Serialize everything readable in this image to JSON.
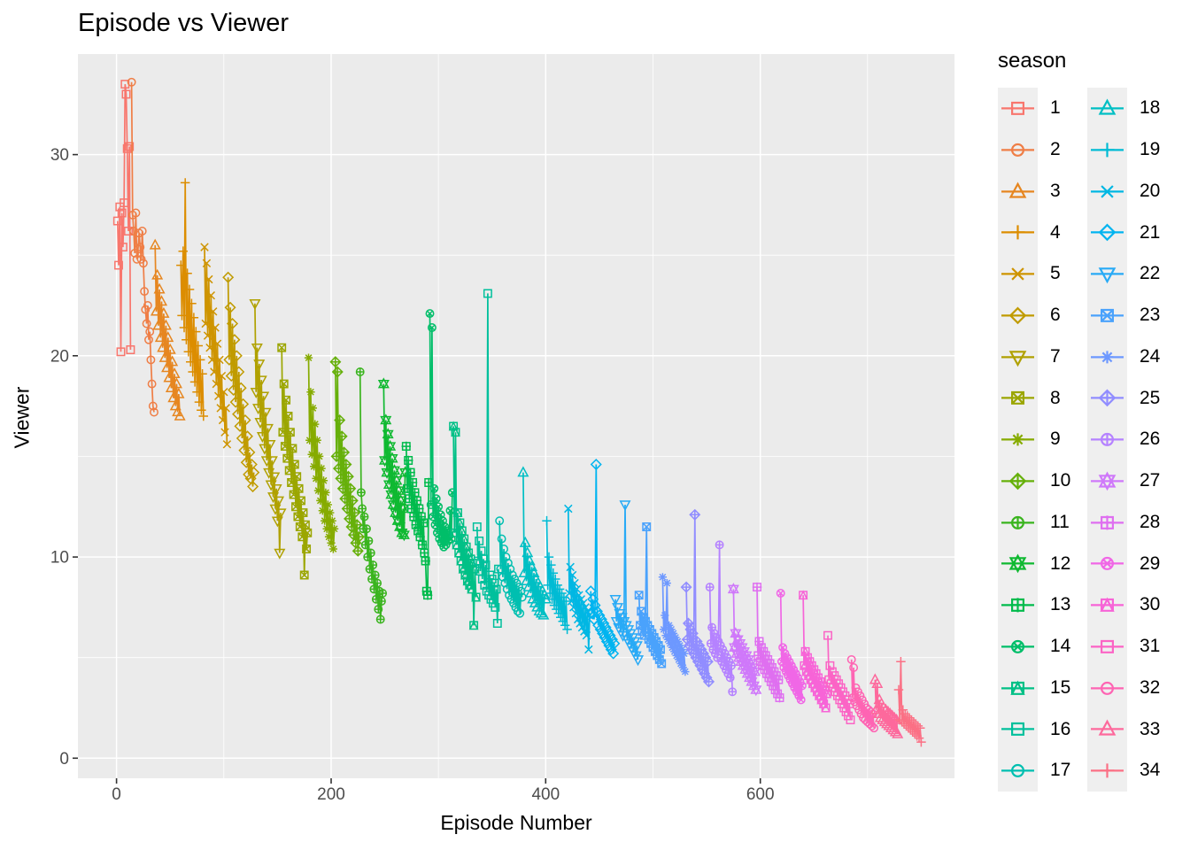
{
  "title": "Episode vs Viewer",
  "axes": {
    "x": {
      "label": "Episode Number",
      "tick_values": [
        0,
        200,
        400,
        600
      ],
      "tick_labels": [
        "0",
        "200",
        "400",
        "600"
      ],
      "minor_ticks": [
        100,
        300,
        500,
        700
      ]
    },
    "y": {
      "label": "Viewer",
      "tick_values": [
        0,
        10,
        20,
        30
      ],
      "tick_labels": [
        "0",
        "10",
        "20",
        "30"
      ],
      "minor_ticks": [
        5,
        15,
        25
      ]
    }
  },
  "legend": {
    "title": "season",
    "column_split": 17
  },
  "colors": {
    "background": "#FFFFFF",
    "panel": "#EBEBEB",
    "grid": "#FFFFFF",
    "tick_mark": "#333333",
    "tick_label": "#4D4D4D",
    "text": "#000000",
    "legend_key": "#EFEFEF"
  },
  "chart_data": {
    "type": "line",
    "title": "Episode vs Viewer",
    "xlabel": "Episode Number",
    "ylabel": "Viewer",
    "xlim": [
      -36,
      781
    ],
    "ylim": [
      -1,
      35
    ],
    "grid": true,
    "legend_position": "right",
    "marker_cycle": [
      "square",
      "circle",
      "triangle-up",
      "plus",
      "cross",
      "diamond",
      "triangle-down",
      "square-cross",
      "asterisk",
      "diamond-plus",
      "circle-plus",
      "star-six",
      "square-plus",
      "circle-cross",
      "square-triangle"
    ],
    "series": [
      {
        "name": "1",
        "season": 1,
        "shape": "square",
        "color": "#F8766D",
        "start_episode": 1,
        "viewers": [
          26.7,
          24.5,
          27.4,
          20.2,
          27.1,
          25.4,
          27.6,
          33.5,
          33.0,
          30.3,
          26.2,
          30.4,
          20.3
        ]
      },
      {
        "name": "2",
        "season": 2,
        "shape": "circle",
        "color": "#EF7E46",
        "start_episode": 14,
        "viewers": [
          33.6,
          27.0,
          26.2,
          25.1,
          27.1,
          24.8,
          25.3,
          26.1,
          25.4,
          24.8,
          26.2,
          24.6,
          23.2,
          22.3,
          21.6,
          22.5,
          20.8,
          21.2,
          19.8,
          18.6,
          17.5,
          17.2
        ]
      },
      {
        "name": "3",
        "season": 3,
        "shape": "triangle-up",
        "color": "#E68620",
        "start_episode": 36,
        "viewers": [
          25.5,
          22.2,
          24.0,
          21.5,
          23.3,
          20.9,
          22.7,
          20.4,
          22.1,
          19.9,
          21.5,
          19.4,
          20.9,
          18.9,
          20.3,
          18.4,
          19.7,
          17.9,
          19.1,
          17.5,
          18.6,
          17.2,
          18.1,
          17.0
        ]
      },
      {
        "name": "4",
        "season": 4,
        "shape": "plus",
        "color": "#DC8D00",
        "start_episode": 60,
        "viewers": [
          24.5,
          22.0,
          25.2,
          21.4,
          28.6,
          20.8,
          24.1,
          20.2,
          23.3,
          19.7,
          22.6,
          19.2,
          21.9,
          18.7,
          21.2,
          18.2,
          20.5,
          17.7,
          19.8,
          17.3,
          19.1,
          17.0
        ]
      },
      {
        "name": "5",
        "season": 5,
        "shape": "cross",
        "color": "#CE9400",
        "start_episode": 82,
        "viewers": [
          25.4,
          21.6,
          24.6,
          21.0,
          23.8,
          20.4,
          23.0,
          19.8,
          22.2,
          19.2,
          21.4,
          18.6,
          20.6,
          18.0,
          19.8,
          17.4,
          19.0,
          16.8,
          18.2,
          16.2,
          17.4,
          15.6
        ]
      },
      {
        "name": "6",
        "season": 6,
        "shape": "diamond",
        "color": "#C09B00",
        "start_episode": 104,
        "viewers": [
          23.9,
          19.8,
          22.4,
          19.0,
          21.6,
          18.3,
          20.8,
          17.7,
          20.0,
          17.1,
          19.2,
          16.5,
          18.4,
          15.9,
          17.6,
          15.3,
          16.8,
          14.7,
          16.0,
          14.1,
          15.2,
          13.9,
          14.6,
          13.5,
          14.2
        ]
      },
      {
        "name": "7",
        "season": 7,
        "shape": "triangle-down",
        "color": "#B0A100",
        "start_episode": 129,
        "viewers": [
          22.6,
          18.2,
          20.4,
          17.4,
          19.6,
          16.7,
          18.8,
          16.0,
          18.0,
          15.4,
          17.2,
          14.8,
          16.4,
          14.2,
          15.6,
          13.6,
          14.8,
          13.0,
          14.0,
          12.4,
          13.4,
          11.8,
          12.8,
          10.2,
          12.2
        ]
      },
      {
        "name": "8",
        "season": 8,
        "shape": "square-cross",
        "color": "#9BA600",
        "start_episode": 154,
        "viewers": [
          20.4,
          16.2,
          18.6,
          15.5,
          17.8,
          14.9,
          17.0,
          14.3,
          16.2,
          13.7,
          15.4,
          13.1,
          14.6,
          12.5,
          14.0,
          12.0,
          13.4,
          11.5,
          12.8,
          11.0,
          12.2,
          9.1,
          11.6,
          10.4,
          11.2
        ]
      },
      {
        "name": "9",
        "season": 9,
        "shape": "asterisk",
        "color": "#86AB00",
        "start_episode": 179,
        "viewers": [
          19.9,
          15.8,
          18.2,
          15.1,
          17.4,
          14.5,
          16.6,
          13.9,
          15.8,
          13.3,
          15.0,
          12.8,
          14.4,
          12.3,
          13.8,
          11.8,
          13.2,
          11.4,
          12.6,
          11.0,
          12.2,
          10.7,
          11.8,
          10.4,
          11.4
        ]
      },
      {
        "name": "10",
        "season": 10,
        "shape": "diamond-plus",
        "color": "#66B00A",
        "start_episode": 204,
        "viewers": [
          19.7,
          15.0,
          19.2,
          14.4,
          16.8,
          13.9,
          16.0,
          13.4,
          15.2,
          12.9,
          14.6,
          12.4,
          14.0,
          11.9,
          13.4,
          11.5,
          12.8,
          11.1,
          12.2,
          10.7,
          11.6,
          10.3,
          11.0
        ]
      },
      {
        "name": "11",
        "season": 11,
        "shape": "circle-plus",
        "color": "#3AB41E",
        "start_episode": 227,
        "viewers": [
          19.2,
          13.2,
          12.4,
          11.4,
          12.0,
          10.6,
          11.4,
          10.0,
          10.8,
          9.4,
          10.2,
          8.9,
          9.6,
          8.4,
          9.1,
          7.9,
          8.7,
          7.4,
          8.3,
          6.9,
          7.8,
          8.2
        ]
      },
      {
        "name": "12",
        "season": 12,
        "shape": "star-six",
        "color": "#0FB931",
        "start_episode": 249,
        "viewers": [
          18.6,
          14.8,
          16.8,
          14.2,
          16.1,
          13.6,
          15.5,
          13.1,
          14.9,
          12.6,
          14.3,
          12.2,
          13.8,
          11.8,
          13.3,
          11.5,
          12.8,
          11.2,
          12.4,
          11.1,
          14.2
        ]
      },
      {
        "name": "13",
        "season": 13,
        "shape": "square-plus",
        "color": "#00BB4C",
        "start_episode": 270,
        "viewers": [
          15.5,
          13.4,
          14.8,
          12.9,
          14.2,
          12.4,
          13.7,
          12.0,
          13.2,
          11.6,
          12.8,
          11.3,
          12.4,
          11.0,
          12.0,
          10.6,
          11.7,
          10.2,
          9.8,
          8.3,
          8.1,
          13.7
        ]
      },
      {
        "name": "14",
        "season": 14,
        "shape": "circle-cross",
        "color": "#00BE69",
        "start_episode": 292,
        "viewers": [
          22.1,
          12.6,
          21.4,
          12.0,
          13.4,
          11.6,
          12.9,
          11.2,
          12.5,
          10.9,
          12.1,
          10.7,
          11.8,
          10.5,
          11.5,
          10.6,
          11.3,
          10.8,
          11.1,
          12.3,
          10.9,
          13.2
        ]
      },
      {
        "name": "15",
        "season": 15,
        "shape": "square-triangle",
        "color": "#00C086",
        "start_episode": 314,
        "viewers": [
          16.5,
          11.2,
          16.2,
          10.6,
          12.2,
          10.2,
          11.7,
          9.8,
          11.3,
          9.4,
          10.9,
          9.1,
          10.5,
          8.8,
          10.2,
          8.6,
          9.9,
          8.4,
          9.7,
          6.6,
          9.4,
          8.0
        ]
      },
      {
        "name": "16",
        "season": 16,
        "shape": "square",
        "color": "#00C09C",
        "start_episode": 336,
        "viewers": [
          11.5,
          9.8,
          10.8,
          9.3,
          10.3,
          8.9,
          9.9,
          8.6,
          9.6,
          8.3,
          23.1,
          8.1,
          9.1,
          7.9,
          8.9,
          7.7,
          8.7,
          7.5,
          8.4,
          6.7,
          9.4
        ]
      },
      {
        "name": "17",
        "season": 17,
        "shape": "circle",
        "color": "#00BFB0",
        "start_episode": 357,
        "viewers": [
          11.8,
          9.4,
          10.9,
          9.0,
          10.4,
          8.7,
          10.0,
          8.4,
          9.7,
          8.1,
          9.4,
          7.9,
          9.1,
          7.7,
          8.9,
          7.5,
          8.7,
          7.3,
          8.5,
          7.2,
          8.3,
          8.0
        ]
      },
      {
        "name": "18",
        "season": 18,
        "shape": "triangle-up",
        "color": "#00BFC4",
        "start_episode": 379,
        "viewers": [
          14.2,
          9.2,
          10.7,
          8.8,
          10.2,
          8.5,
          9.8,
          8.2,
          9.5,
          7.9,
          9.2,
          7.7,
          8.9,
          7.5,
          8.7,
          7.3,
          8.5,
          7.2,
          8.3,
          7.1,
          8.1,
          7.9
        ]
      },
      {
        "name": "19",
        "season": 19,
        "shape": "plus",
        "color": "#00BBD4",
        "start_episode": 401,
        "viewers": [
          11.8,
          8.6,
          10.0,
          8.2,
          9.6,
          7.9,
          9.2,
          7.6,
          8.9,
          7.4,
          8.6,
          7.2,
          8.4,
          7.0,
          8.2,
          6.8,
          8.0,
          6.6,
          7.8,
          6.4
        ]
      },
      {
        "name": "20",
        "season": 20,
        "shape": "cross",
        "color": "#00B7E3",
        "start_episode": 421,
        "viewers": [
          12.4,
          8.2,
          9.5,
          7.8,
          9.1,
          7.5,
          8.7,
          7.2,
          8.4,
          6.9,
          8.1,
          6.7,
          7.9,
          6.5,
          7.7,
          6.3,
          7.5,
          6.1,
          7.3,
          5.4,
          7.1
        ]
      },
      {
        "name": "21",
        "season": 21,
        "shape": "diamond",
        "color": "#00B4F0",
        "start_episode": 442,
        "viewers": [
          8.3,
          7.2,
          7.9,
          6.9,
          7.6,
          14.6,
          7.3,
          6.6,
          7.1,
          6.4,
          6.9,
          6.2,
          6.7,
          6.0,
          6.5,
          5.8,
          6.3,
          5.6,
          6.1,
          5.4,
          5.9,
          5.2,
          5.7
        ]
      },
      {
        "name": "22",
        "season": 22,
        "shape": "triangle-down",
        "color": "#28AAF6",
        "start_episode": 465,
        "viewers": [
          7.9,
          6.8,
          7.5,
          6.5,
          7.2,
          6.3,
          7.0,
          6.1,
          6.8,
          12.6,
          6.6,
          5.9,
          6.4,
          5.7,
          6.2,
          5.5,
          6.0,
          5.3,
          5.8,
          5.1,
          5.6,
          4.9
        ]
      },
      {
        "name": "23",
        "season": 23,
        "shape": "square-cross",
        "color": "#4AA2FC",
        "start_episode": 487,
        "viewers": [
          8.1,
          6.6,
          7.3,
          6.3,
          7.0,
          6.1,
          6.8,
          11.5,
          6.6,
          5.9,
          6.4,
          5.7,
          6.2,
          5.5,
          6.0,
          5.3,
          5.8,
          5.1,
          5.6,
          4.9,
          5.4,
          4.7
        ]
      },
      {
        "name": "24",
        "season": 24,
        "shape": "asterisk",
        "color": "#6D98FF",
        "start_episode": 509,
        "viewers": [
          9.0,
          6.4,
          7.1,
          6.1,
          8.7,
          5.9,
          6.6,
          5.7,
          6.4,
          5.5,
          6.2,
          5.3,
          6.0,
          5.1,
          5.8,
          4.9,
          5.6,
          4.7,
          5.4,
          4.5,
          5.2,
          4.3
        ]
      },
      {
        "name": "25",
        "season": 25,
        "shape": "diamond-plus",
        "color": "#918DFF",
        "start_episode": 531,
        "viewers": [
          8.5,
          5.9,
          6.7,
          5.6,
          6.4,
          5.4,
          6.2,
          5.2,
          12.1,
          5.0,
          5.8,
          4.8,
          5.6,
          4.6,
          5.4,
          4.4,
          5.2,
          4.2,
          5.0,
          4.0,
          4.8,
          3.8
        ]
      },
      {
        "name": "26",
        "season": 26,
        "shape": "circle-plus",
        "color": "#B582FF",
        "start_episode": 553,
        "viewers": [
          8.5,
          5.7,
          6.5,
          5.4,
          6.2,
          5.2,
          6.0,
          5.0,
          5.8,
          10.6,
          5.6,
          4.8,
          5.4,
          4.6,
          5.2,
          4.4,
          5.0,
          4.2,
          4.8,
          4.0,
          4.6,
          3.3
        ]
      },
      {
        "name": "27",
        "season": 27,
        "shape": "star-six",
        "color": "#CF78FA",
        "start_episode": 575,
        "viewers": [
          8.4,
          5.5,
          6.2,
          5.2,
          5.9,
          5.0,
          5.7,
          4.8,
          5.5,
          4.6,
          5.3,
          4.4,
          5.1,
          4.2,
          4.9,
          4.0,
          4.7,
          3.8,
          4.5,
          3.6,
          4.3,
          3.4
        ]
      },
      {
        "name": "28",
        "season": 28,
        "shape": "square-plus",
        "color": "#DF6FF0",
        "start_episode": 597,
        "viewers": [
          8.5,
          5.1,
          5.8,
          4.8,
          5.5,
          4.6,
          5.3,
          4.4,
          5.1,
          4.2,
          4.9,
          4.0,
          4.7,
          3.8,
          4.5,
          3.6,
          4.3,
          3.4,
          4.1,
          3.2,
          3.9,
          3.0
        ]
      },
      {
        "name": "29",
        "season": 29,
        "shape": "circle-cross",
        "color": "#F067E6",
        "start_episode": 619,
        "viewers": [
          8.2,
          4.8,
          5.5,
          4.5,
          5.2,
          4.3,
          5.0,
          4.1,
          4.8,
          3.9,
          4.6,
          3.7,
          4.4,
          3.5,
          4.2,
          3.3,
          4.0,
          3.1,
          3.8,
          2.9,
          3.6
        ]
      },
      {
        "name": "30",
        "season": 30,
        "shape": "square-triangle",
        "color": "#F764D7",
        "start_episode": 640,
        "viewers": [
          8.1,
          4.6,
          5.3,
          4.3,
          5.0,
          4.1,
          4.8,
          3.9,
          4.6,
          3.7,
          4.4,
          3.5,
          4.2,
          3.3,
          4.0,
          3.1,
          3.8,
          2.9,
          3.6,
          2.7,
          3.4,
          2.5,
          3.2
        ]
      },
      {
        "name": "31",
        "season": 31,
        "shape": "square",
        "color": "#FB64C5",
        "start_episode": 663,
        "viewers": [
          6.1,
          3.9,
          4.6,
          3.7,
          4.3,
          3.5,
          4.1,
          3.3,
          3.9,
          3.1,
          3.7,
          2.9,
          3.5,
          2.7,
          3.3,
          2.5,
          3.1,
          2.3,
          2.9,
          2.1,
          2.7,
          1.9
        ]
      },
      {
        "name": "32",
        "season": 32,
        "shape": "circle",
        "color": "#FE64B3",
        "start_episode": 685,
        "viewers": [
          4.9,
          3.0,
          4.5,
          2.8,
          3.5,
          2.6,
          3.3,
          2.4,
          3.1,
          2.2,
          2.9,
          2.0,
          2.7,
          1.9,
          2.5,
          1.8,
          2.4,
          1.7,
          2.3,
          1.6,
          2.2,
          1.5
        ]
      },
      {
        "name": "33",
        "season": 33,
        "shape": "triangle-up",
        "color": "#FD699C",
        "start_episode": 707,
        "viewers": [
          3.9,
          2.4,
          3.7,
          2.2,
          2.9,
          2.0,
          2.7,
          1.9,
          2.5,
          1.8,
          2.4,
          1.7,
          2.3,
          1.6,
          2.2,
          1.5,
          2.1,
          1.4,
          2.0,
          1.3,
          1.9,
          1.2
        ]
      },
      {
        "name": "34",
        "season": 34,
        "shape": "plus",
        "color": "#FB7085",
        "start_episode": 729,
        "viewers": [
          3.4,
          1.9,
          4.8,
          1.8,
          2.4,
          1.7,
          2.2,
          1.6,
          2.1,
          1.5,
          2.0,
          1.4,
          1.9,
          1.3,
          1.8,
          1.2,
          1.7,
          1.1,
          1.6,
          1.0,
          1.5,
          0.8
        ]
      }
    ]
  }
}
